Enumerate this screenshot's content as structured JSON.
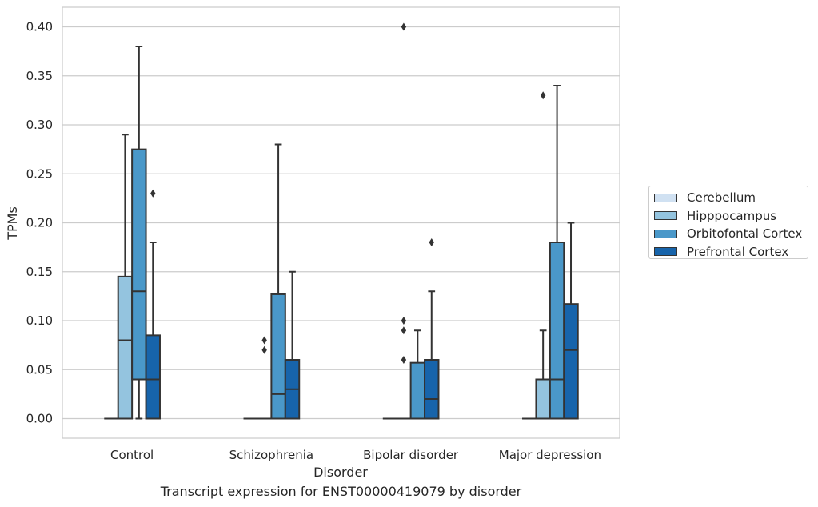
{
  "chart_data": {
    "type": "box",
    "xlabel": "Disorder",
    "ylabel": "TPMs",
    "caption": "Transcript expression for ENST00000419079 by disorder",
    "categories": [
      "Control",
      "Schizophrenia",
      "Bipolar disorder",
      "Major depression"
    ],
    "ylim": [
      -0.02,
      0.42
    ],
    "yticks": [
      0.0,
      0.05,
      0.1,
      0.15,
      0.2,
      0.25,
      0.3,
      0.35,
      0.4
    ],
    "ytick_labels": [
      "0.00",
      "0.05",
      "0.10",
      "0.15",
      "0.20",
      "0.25",
      "0.30",
      "0.35",
      "0.40"
    ],
    "grid": "horizontal",
    "legend_position": "right-outside",
    "series": [
      {
        "name": "Cerebellum",
        "color": "#d0e1f2",
        "boxes": [
          {
            "category": "Control",
            "whisker_low": 0,
            "q1": 0,
            "median": 0,
            "q3": 0,
            "whisker_high": 0,
            "outliers": []
          },
          {
            "category": "Schizophrenia",
            "whisker_low": 0,
            "q1": 0,
            "median": 0,
            "q3": 0,
            "whisker_high": 0,
            "outliers": []
          },
          {
            "category": "Bipolar disorder",
            "whisker_low": 0,
            "q1": 0,
            "median": 0,
            "q3": 0,
            "whisker_high": 0,
            "outliers": []
          },
          {
            "category": "Major depression",
            "whisker_low": 0,
            "q1": 0,
            "median": 0,
            "q3": 0,
            "whisker_high": 0,
            "outliers": []
          }
        ]
      },
      {
        "name": "Hipppocampus",
        "color": "#94c4df",
        "boxes": [
          {
            "category": "Control",
            "whisker_low": 0,
            "q1": 0,
            "median": 0.08,
            "q3": 0.145,
            "whisker_high": 0.29,
            "outliers": []
          },
          {
            "category": "Schizophrenia",
            "whisker_low": 0,
            "q1": 0,
            "median": 0,
            "q3": 0,
            "whisker_high": 0,
            "outliers": [
              0.07,
              0.08
            ]
          },
          {
            "category": "Bipolar disorder",
            "whisker_low": 0,
            "q1": 0,
            "median": 0,
            "q3": 0,
            "whisker_high": 0,
            "outliers": [
              0.06,
              0.09,
              0.1,
              0.4
            ]
          },
          {
            "category": "Major depression",
            "whisker_low": 0,
            "q1": 0,
            "median": 0,
            "q3": 0.04,
            "whisker_high": 0.09,
            "outliers": [
              0.33
            ]
          }
        ]
      },
      {
        "name": "Orbitofontal Cortex",
        "color": "#4a98c9",
        "boxes": [
          {
            "category": "Control",
            "whisker_low": 0,
            "q1": 0.04,
            "median": 0.13,
            "q3": 0.275,
            "whisker_high": 0.38,
            "outliers": []
          },
          {
            "category": "Schizophrenia",
            "whisker_low": 0,
            "q1": 0,
            "median": 0.025,
            "q3": 0.127,
            "whisker_high": 0.28,
            "outliers": []
          },
          {
            "category": "Bipolar disorder",
            "whisker_low": 0,
            "q1": 0,
            "median": 0,
            "q3": 0.057,
            "whisker_high": 0.09,
            "outliers": []
          },
          {
            "category": "Major depression",
            "whisker_low": 0,
            "q1": 0,
            "median": 0.04,
            "q3": 0.18,
            "whisker_high": 0.34,
            "outliers": []
          }
        ]
      },
      {
        "name": "Prefrontal Cortex",
        "color": "#1764ab",
        "boxes": [
          {
            "category": "Control",
            "whisker_low": 0,
            "q1": 0,
            "median": 0.04,
            "q3": 0.085,
            "whisker_high": 0.18,
            "outliers": [
              0.23
            ]
          },
          {
            "category": "Schizophrenia",
            "whisker_low": 0,
            "q1": 0,
            "median": 0.03,
            "q3": 0.06,
            "whisker_high": 0.15,
            "outliers": []
          },
          {
            "category": "Bipolar disorder",
            "whisker_low": 0,
            "q1": 0,
            "median": 0.02,
            "q3": 0.06,
            "whisker_high": 0.13,
            "outliers": [
              0.18
            ]
          },
          {
            "category": "Major depression",
            "whisker_low": 0,
            "q1": 0,
            "median": 0.07,
            "q3": 0.117,
            "whisker_high": 0.2,
            "outliers": []
          }
        ]
      }
    ]
  }
}
